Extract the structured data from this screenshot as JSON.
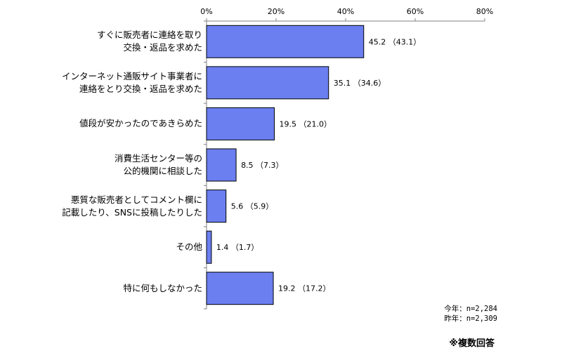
{
  "chart_data": {
    "type": "bar",
    "orientation": "horizontal",
    "categories": [
      [
        "すぐに販売者に連絡を取り",
        "交換・返品を求めた"
      ],
      [
        "インターネット通販サイト事業者に",
        "連絡をとり交換・返品を求めた"
      ],
      [
        "値段が安かったのであきらめた"
      ],
      [
        "消費生活センター等の",
        "公的機関に相談した"
      ],
      [
        "悪質な販売者としてコメント欄に",
        "記載したり、SNSに投稿したりした"
      ],
      [
        "その他"
      ],
      [
        "特に何もしなかった"
      ]
    ],
    "series": [
      {
        "values": [
          45.2,
          35.1,
          19.5,
          8.5,
          5.6,
          1.4,
          19.2
        ]
      },
      {
        "values": [
          43.1,
          34.6,
          21.0,
          7.3,
          5.9,
          1.7,
          17.2
        ]
      }
    ],
    "data_labels": [
      "45.2 （43.1）",
      "35.1 （34.6）",
      "19.5 （21.0）",
      "8.5 （7.3）",
      "5.6 （5.9）",
      "1.4 （1.7）",
      "19.2 （17.2）"
    ],
    "xlim": [
      0,
      80
    ],
    "x_ticks": [
      "0%",
      "20%",
      "40%",
      "60%",
      "80%"
    ],
    "x_tick_values": [
      0,
      20,
      40,
      60,
      80
    ],
    "axis_position": "top",
    "grid": false,
    "bar_color": "#6b7ff0",
    "bar_edge_color": "#000000"
  },
  "notes": {
    "this_year": "今年：n=2,284",
    "last_year": "昨年：n=2,309",
    "multiple_answers": "※複数回答"
  }
}
